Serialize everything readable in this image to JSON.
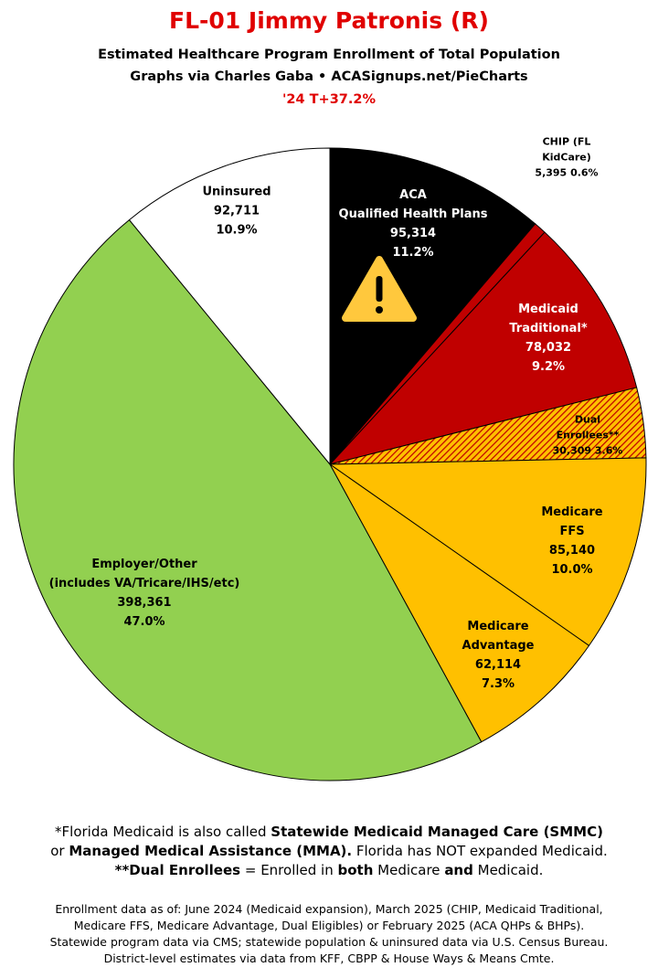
{
  "chart_data": {
    "type": "pie",
    "title": "FL-01 Jimmy Patronis (R)",
    "subtitle_lines": [
      "Estimated Healthcare Program Enrollment of Total Population",
      "Graphs via Charles Gaba  •  ACASignups.net/PieCharts",
      "'24 T+37.2%"
    ],
    "categories": [
      "ACA\nQualified Health Plans",
      "CHIP (FL KidCare)",
      "Medicaid\nTraditional*",
      "Dual Enrollees**",
      "Medicare FFS",
      "Medicare\nAdvantage",
      "Employer/Other\n(includes VA/Tricare/IHS/etc)",
      "Uninsured"
    ],
    "values": [
      95314,
      5395,
      78032,
      30309,
      85140,
      62114,
      398361,
      92711
    ],
    "value_labels": [
      "95,314",
      "5,395",
      "78,032",
      "30,309",
      "85,140",
      "62,114",
      "398,361",
      "92,711"
    ],
    "percents": [
      11.2,
      0.6,
      9.2,
      3.6,
      10.0,
      7.3,
      47.0,
      10.9
    ],
    "percent_labels": [
      "11.2%",
      "0.6%",
      "9.2%",
      "3.6%",
      "10.0%",
      "7.3%",
      "47.0%",
      "10.9%"
    ],
    "colors": [
      "#000000",
      "#c00000",
      "#c00000",
      "#ffc000",
      "#ffc000",
      "#ffc000",
      "#92d050",
      "#ffffff"
    ],
    "label_colors": [
      "#ffffff",
      "#000000",
      "#ffffff",
      "#000000",
      "#000000",
      "#000000",
      "#000000",
      "#000000"
    ],
    "hatched": [
      false,
      false,
      false,
      true,
      false,
      false,
      false,
      false
    ]
  },
  "notes": {
    "line1": [
      "*Florida Medicaid is also called ",
      "Statewide Medicaid Managed Care (SMMC)"
    ],
    "line2": [
      "or ",
      "Managed Medical Assistance (MMA).",
      " Florida has NOT expanded Medicaid."
    ],
    "line3": [
      "**Dual Enrollees",
      " = Enrolled in ",
      "both",
      " Medicare ",
      "and",
      " Medicaid."
    ],
    "footer": [
      "Enrollment data as of: June 2024 (Medicaid expansion), March 2025 (CHIP, Medicaid Traditional,",
      "Medicare FFS, Medicare Advantage, Dual Eligibles) or February 2025 (ACA QHPs & BHPs).",
      "Statewide program data via CMS; statewide population & uninsured data via U.S. Census Bureau.",
      "District-level estimates via data from KFF, CBPP & House Ways & Means Cmte."
    ]
  }
}
